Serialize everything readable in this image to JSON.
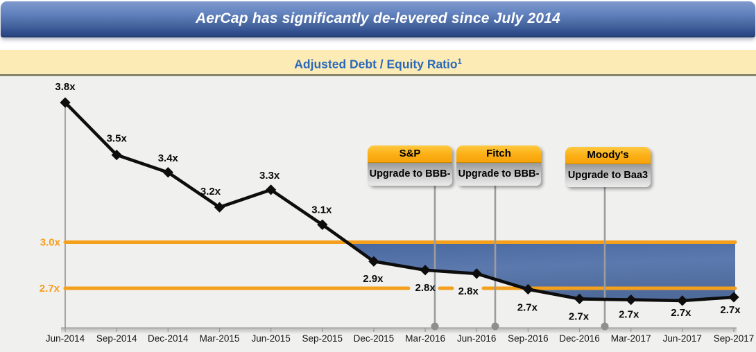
{
  "header": {
    "title": "AerCap has significantly de-levered since July 2014"
  },
  "subtitle": {
    "text": "Adjusted Debt / Equity Ratio",
    "footnote_marker": "1"
  },
  "chart_data": {
    "type": "line",
    "title": "Adjusted Debt / Equity Ratio",
    "marker": "diamond",
    "grid": false,
    "legend": false,
    "categories": [
      "Jun-2014",
      "Sep-2014",
      "Dec-2014",
      "Mar-2015",
      "Jun-2015",
      "Sep-2015",
      "Dec-2015",
      "Mar-2016",
      "Jun-2016",
      "Sep-2016",
      "Dec-2016",
      "Mar-2017",
      "Jun-2017",
      "Sep-2017"
    ],
    "series": [
      {
        "name": "Adjusted Debt / Equity Ratio",
        "point_labels": [
          "3.8x",
          "3.5x",
          "3.4x",
          "3.2x",
          "3.3x",
          "3.1x",
          "2.9x",
          "2.8x",
          "2.8x",
          "2.7x",
          "2.7x",
          "2.7x",
          "2.7x",
          "2.7x"
        ],
        "values": [
          3.8,
          3.5,
          3.4,
          3.2,
          3.3,
          3.1,
          2.89,
          2.84,
          2.82,
          2.73,
          2.675,
          2.67,
          2.665,
          2.685
        ]
      }
    ],
    "reference_lines": [
      {
        "label": "3.0x",
        "value": 3.0
      },
      {
        "label": "2.7x",
        "value": 2.7
      }
    ],
    "shaded_band": "blue band fills between the ratio line and the 3.0x reference line from where the line crosses 3.0x (late 2015) to Sep-2017",
    "annotations": [
      {
        "agency": "S&P",
        "action": "Upgrade to BBB-"
      },
      {
        "agency": "Fitch",
        "action": "Upgrade to BBB-"
      },
      {
        "agency": "Moody's",
        "action": "Upgrade to Baa3"
      }
    ],
    "ylim": [
      2.45,
      3.95
    ]
  },
  "colors": {
    "accent_orange": "#F5A01C",
    "band_blue": "#53709F",
    "header_blue": "#2F4D8D",
    "subtitle_blue": "#2A68BC",
    "subtitle_cream": "#FCEBB5",
    "callout_orange": "#FBAF14",
    "line_black": "#0D0D0D",
    "connector_gray": "#9C9C9C"
  }
}
